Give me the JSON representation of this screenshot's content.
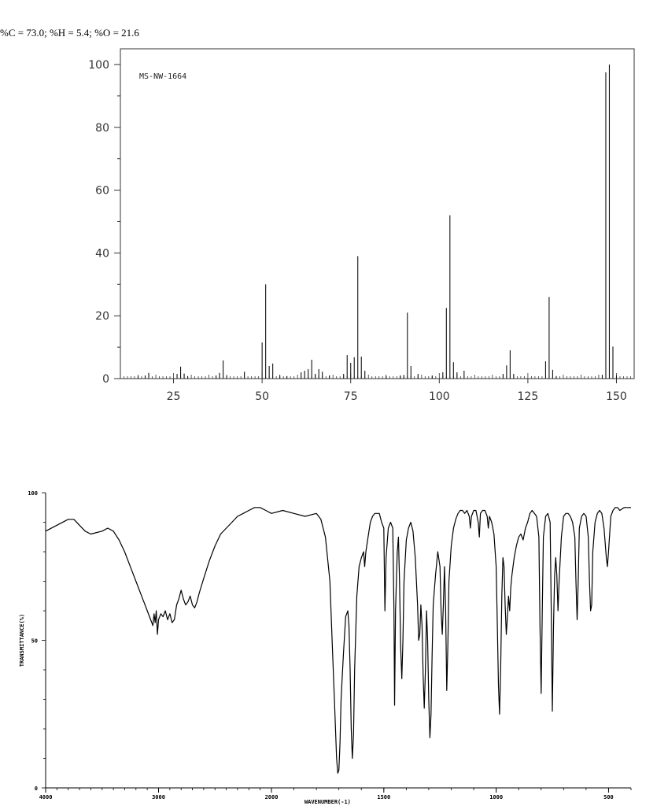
{
  "composition": "%C = 73.0; %H = 5.4; %O = 21.6",
  "chart_data": [
    {
      "type": "bar",
      "label": "MS-NW-1664",
      "xlim": [
        10,
        155
      ],
      "ylim": [
        0,
        105
      ],
      "x_ticks": [
        25,
        50,
        75,
        100,
        125,
        150
      ],
      "y_ticks": [
        0,
        20,
        40,
        60,
        80,
        100
      ],
      "grid": false,
      "peaks": [
        [
          15,
          0.8
        ],
        [
          17,
          1
        ],
        [
          18,
          1.8
        ],
        [
          26,
          1.5
        ],
        [
          27,
          3.8
        ],
        [
          28,
          1.6
        ],
        [
          29,
          0.8
        ],
        [
          37,
          1
        ],
        [
          38,
          1.8
        ],
        [
          39,
          5.8
        ],
        [
          40,
          0.8
        ],
        [
          45,
          2.2
        ],
        [
          50,
          11.5
        ],
        [
          51,
          30
        ],
        [
          52,
          4
        ],
        [
          53,
          4.8
        ],
        [
          55,
          1
        ],
        [
          57,
          0.8
        ],
        [
          61,
          2
        ],
        [
          62,
          2.5
        ],
        [
          63,
          3
        ],
        [
          64,
          6
        ],
        [
          65,
          1.5
        ],
        [
          66,
          3
        ],
        [
          67,
          2.2
        ],
        [
          69,
          1
        ],
        [
          73,
          1.5
        ],
        [
          74,
          7.5
        ],
        [
          75,
          5
        ],
        [
          76,
          6.8
        ],
        [
          77,
          39
        ],
        [
          78,
          7
        ],
        [
          79,
          2.5
        ],
        [
          85,
          0.8
        ],
        [
          89,
          1
        ],
        [
          90,
          1
        ],
        [
          91,
          21
        ],
        [
          92,
          4
        ],
        [
          94,
          1.5
        ],
        [
          98,
          1
        ],
        [
          101,
          2
        ],
        [
          102,
          22.5
        ],
        [
          103,
          52
        ],
        [
          104,
          5.2
        ],
        [
          105,
          2
        ],
        [
          107,
          2.5
        ],
        [
          118,
          1.5
        ],
        [
          119,
          4.2
        ],
        [
          120,
          9
        ],
        [
          121,
          1.5
        ],
        [
          130,
          5.5
        ],
        [
          131,
          26
        ],
        [
          132,
          2.8
        ],
        [
          133,
          0.8
        ],
        [
          146,
          1.2
        ],
        [
          147,
          97.5
        ],
        [
          148,
          100
        ],
        [
          149,
          10.2
        ],
        [
          150,
          1
        ]
      ]
    },
    {
      "type": "line",
      "xlabel": "WAVENUMBER(-1)",
      "ylabel": "TRANSMITTANCE(%)",
      "xlim": [
        4000,
        400
      ],
      "ylim": [
        0,
        100
      ],
      "x_ticks": [
        4000,
        3000,
        2000,
        1500,
        1000,
        500
      ],
      "y_ticks": [
        0,
        50,
        100
      ],
      "grid": false,
      "points": [
        [
          4000,
          87
        ],
        [
          3900,
          89
        ],
        [
          3800,
          91
        ],
        [
          3750,
          91
        ],
        [
          3700,
          89
        ],
        [
          3650,
          87
        ],
        [
          3600,
          86
        ],
        [
          3500,
          87
        ],
        [
          3450,
          88
        ],
        [
          3400,
          87
        ],
        [
          3350,
          84
        ],
        [
          3300,
          80
        ],
        [
          3250,
          75
        ],
        [
          3200,
          70
        ],
        [
          3150,
          65
        ],
        [
          3100,
          60
        ],
        [
          3080,
          58
        ],
        [
          3060,
          56
        ],
        [
          3050,
          55
        ],
        [
          3040,
          59
        ],
        [
          3030,
          56
        ],
        [
          3020,
          60
        ],
        [
          3010,
          52
        ],
        [
          3000,
          57
        ],
        [
          2980,
          59
        ],
        [
          2960,
          58
        ],
        [
          2940,
          60
        ],
        [
          2920,
          57
        ],
        [
          2900,
          59
        ],
        [
          2880,
          56
        ],
        [
          2860,
          57
        ],
        [
          2840,
          62
        ],
        [
          2820,
          64
        ],
        [
          2800,
          67
        ],
        [
          2780,
          64
        ],
        [
          2760,
          62
        ],
        [
          2740,
          63
        ],
        [
          2720,
          65
        ],
        [
          2700,
          62
        ],
        [
          2680,
          61
        ],
        [
          2660,
          63
        ],
        [
          2640,
          66
        ],
        [
          2600,
          71
        ],
        [
          2550,
          77
        ],
        [
          2500,
          82
        ],
        [
          2450,
          86
        ],
        [
          2400,
          88
        ],
        [
          2350,
          90
        ],
        [
          2300,
          92
        ],
        [
          2250,
          93
        ],
        [
          2200,
          94
        ],
        [
          2150,
          95
        ],
        [
          2100,
          95
        ],
        [
          2050,
          94
        ],
        [
          2000,
          93
        ],
        [
          1950,
          94
        ],
        [
          1900,
          93
        ],
        [
          1850,
          92
        ],
        [
          1800,
          93
        ],
        [
          1780,
          91
        ],
        [
          1760,
          85
        ],
        [
          1740,
          70
        ],
        [
          1730,
          50
        ],
        [
          1720,
          30
        ],
        [
          1710,
          10
        ],
        [
          1705,
          5
        ],
        [
          1700,
          6
        ],
        [
          1695,
          15
        ],
        [
          1690,
          30
        ],
        [
          1680,
          45
        ],
        [
          1670,
          58
        ],
        [
          1660,
          60
        ],
        [
          1655,
          55
        ],
        [
          1650,
          40
        ],
        [
          1645,
          20
        ],
        [
          1640,
          10
        ],
        [
          1635,
          18
        ],
        [
          1630,
          40
        ],
        [
          1620,
          65
        ],
        [
          1610,
          75
        ],
        [
          1600,
          78
        ],
        [
          1590,
          80
        ],
        [
          1585,
          75
        ],
        [
          1580,
          80
        ],
        [
          1570,
          85
        ],
        [
          1560,
          90
        ],
        [
          1550,
          92
        ],
        [
          1540,
          93
        ],
        [
          1520,
          93
        ],
        [
          1510,
          90
        ],
        [
          1500,
          88
        ],
        [
          1495,
          60
        ],
        [
          1490,
          78
        ],
        [
          1480,
          88
        ],
        [
          1470,
          90
        ],
        [
          1460,
          88
        ],
        [
          1455,
          60
        ],
        [
          1452,
          28
        ],
        [
          1448,
          60
        ],
        [
          1440,
          80
        ],
        [
          1435,
          85
        ],
        [
          1430,
          70
        ],
        [
          1425,
          48
        ],
        [
          1420,
          37
        ],
        [
          1415,
          50
        ],
        [
          1410,
          70
        ],
        [
          1400,
          84
        ],
        [
          1390,
          88
        ],
        [
          1380,
          90
        ],
        [
          1370,
          87
        ],
        [
          1360,
          78
        ],
        [
          1350,
          62
        ],
        [
          1345,
          50
        ],
        [
          1340,
          52
        ],
        [
          1335,
          62
        ],
        [
          1330,
          55
        ],
        [
          1325,
          38
        ],
        [
          1320,
          27
        ],
        [
          1315,
          40
        ],
        [
          1310,
          60
        ],
        [
          1305,
          50
        ],
        [
          1300,
          30
        ],
        [
          1295,
          17
        ],
        [
          1290,
          25
        ],
        [
          1285,
          45
        ],
        [
          1280,
          62
        ],
        [
          1270,
          72
        ],
        [
          1260,
          80
        ],
        [
          1250,
          75
        ],
        [
          1245,
          60
        ],
        [
          1240,
          52
        ],
        [
          1235,
          62
        ],
        [
          1230,
          75
        ],
        [
          1225,
          60
        ],
        [
          1220,
          33
        ],
        [
          1215,
          48
        ],
        [
          1210,
          70
        ],
        [
          1200,
          82
        ],
        [
          1190,
          88
        ],
        [
          1180,
          91
        ],
        [
          1170,
          93
        ],
        [
          1160,
          94
        ],
        [
          1150,
          94
        ],
        [
          1140,
          93
        ],
        [
          1130,
          94
        ],
        [
          1120,
          92
        ],
        [
          1115,
          88
        ],
        [
          1110,
          92
        ],
        [
          1100,
          94
        ],
        [
          1090,
          94
        ],
        [
          1080,
          90
        ],
        [
          1075,
          85
        ],
        [
          1070,
          93
        ],
        [
          1060,
          94
        ],
        [
          1050,
          94
        ],
        [
          1040,
          92
        ],
        [
          1035,
          88
        ],
        [
          1030,
          92
        ],
        [
          1020,
          90
        ],
        [
          1010,
          86
        ],
        [
          1000,
          75
        ],
        [
          995,
          55
        ],
        [
          990,
          35
        ],
        [
          985,
          25
        ],
        [
          980,
          40
        ],
        [
          975,
          65
        ],
        [
          970,
          78
        ],
        [
          965,
          75
        ],
        [
          960,
          62
        ],
        [
          955,
          52
        ],
        [
          950,
          58
        ],
        [
          945,
          65
        ],
        [
          940,
          60
        ],
        [
          935,
          68
        ],
        [
          930,
          72
        ],
        [
          920,
          78
        ],
        [
          910,
          82
        ],
        [
          900,
          85
        ],
        [
          890,
          86
        ],
        [
          880,
          84
        ],
        [
          870,
          88
        ],
        [
          860,
          90
        ],
        [
          850,
          93
        ],
        [
          840,
          94
        ],
        [
          830,
          93
        ],
        [
          820,
          92
        ],
        [
          810,
          85
        ],
        [
          805,
          55
        ],
        [
          800,
          32
        ],
        [
          795,
          60
        ],
        [
          790,
          85
        ],
        [
          780,
          92
        ],
        [
          770,
          93
        ],
        [
          760,
          90
        ],
        [
          755,
          60
        ],
        [
          750,
          26
        ],
        [
          745,
          55
        ],
        [
          740,
          72
        ],
        [
          735,
          78
        ],
        [
          730,
          72
        ],
        [
          725,
          60
        ],
        [
          720,
          70
        ],
        [
          710,
          85
        ],
        [
          700,
          92
        ],
        [
          690,
          93
        ],
        [
          680,
          93
        ],
        [
          670,
          92
        ],
        [
          660,
          90
        ],
        [
          650,
          85
        ],
        [
          645,
          70
        ],
        [
          640,
          57
        ],
        [
          635,
          70
        ],
        [
          630,
          88
        ],
        [
          620,
          92
        ],
        [
          610,
          93
        ],
        [
          600,
          92
        ],
        [
          590,
          85
        ],
        [
          585,
          70
        ],
        [
          580,
          60
        ],
        [
          575,
          62
        ],
        [
          570,
          80
        ],
        [
          560,
          90
        ],
        [
          550,
          93
        ],
        [
          540,
          94
        ],
        [
          530,
          93
        ],
        [
          520,
          88
        ],
        [
          510,
          78
        ],
        [
          505,
          75
        ],
        [
          500,
          80
        ],
        [
          490,
          92
        ],
        [
          480,
          94
        ],
        [
          470,
          95
        ],
        [
          460,
          95
        ],
        [
          450,
          94
        ],
        [
          430,
          95
        ],
        [
          410,
          95
        ],
        [
          400,
          95
        ]
      ]
    }
  ]
}
